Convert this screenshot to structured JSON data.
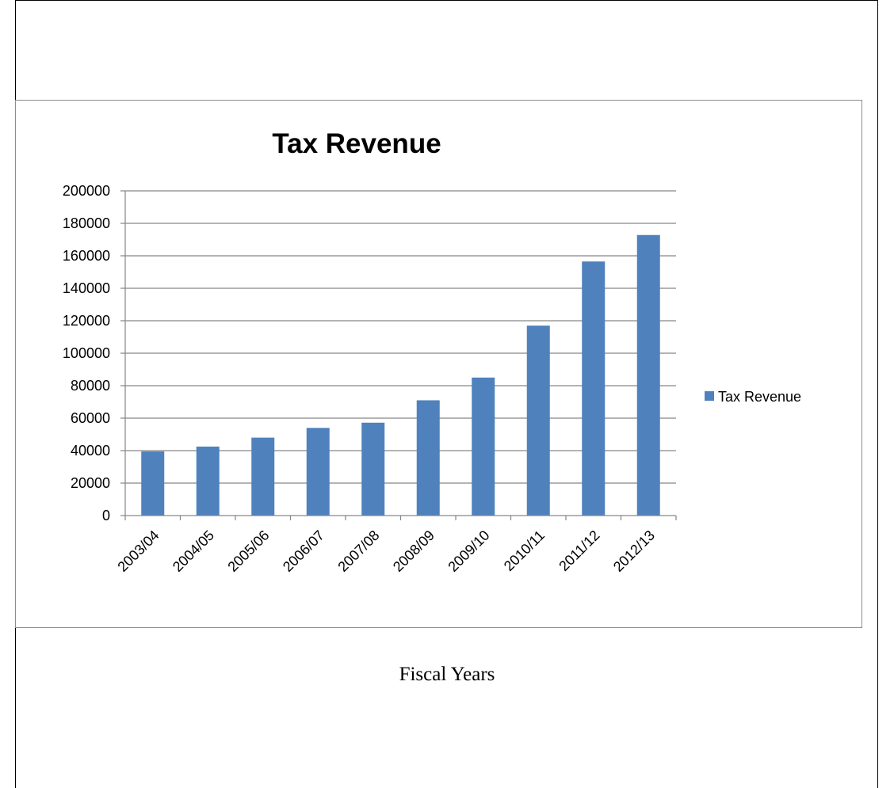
{
  "caption": "Fiscal Years",
  "colors": {
    "bar": "#4F81BD",
    "grid": "#868686",
    "frame": "#8c8c8c"
  },
  "chart_data": {
    "type": "bar",
    "title": "Tax Revenue",
    "xlabel": "",
    "ylabel": "",
    "categories": [
      "2003/04",
      "2004/05",
      "2005/06",
      "2006/07",
      "2007/08",
      "2008/09",
      "2009/10",
      "2010/11",
      "2011/12",
      "2012/13"
    ],
    "series": [
      {
        "name": "Tax Revenue",
        "values": [
          39500,
          42500,
          48000,
          54000,
          57200,
          71000,
          85000,
          117000,
          156500,
          172800
        ]
      }
    ],
    "ylim": [
      0,
      200000
    ],
    "yticks": [
      "0",
      "20000",
      "40000",
      "60000",
      "80000",
      "100000",
      "120000",
      "140000",
      "160000",
      "180000",
      "200000"
    ],
    "grid": true,
    "legend_position": "right"
  }
}
